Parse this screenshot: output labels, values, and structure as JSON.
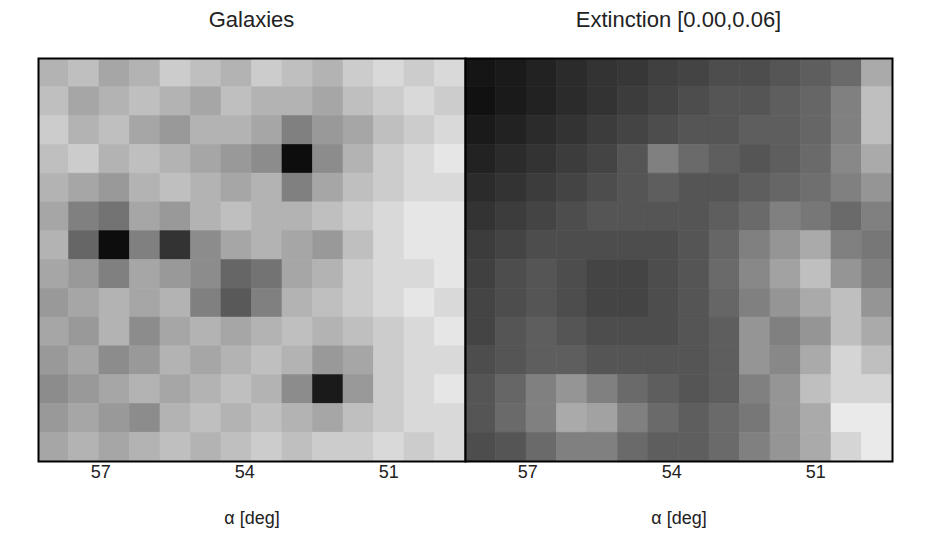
{
  "chart_data": [
    {
      "type": "heatmap",
      "title": "Galaxies",
      "x_label": "α [deg]",
      "xlim": [
        58.3,
        49.4
      ],
      "xticks": [
        57,
        54,
        51
      ],
      "tick_labels": "x",
      "color": [
        "#ffffff",
        "#000000"
      ],
      "color_range": [
        0,
        1
      ],
      "cells": [
        [
          0.3,
          0.25,
          0.35,
          0.3,
          0.2,
          0.25,
          0.3,
          0.2,
          0.25,
          0.3,
          0.2,
          0.15,
          0.2,
          0.15
        ],
        [
          0.25,
          0.35,
          0.3,
          0.25,
          0.3,
          0.35,
          0.25,
          0.3,
          0.3,
          0.35,
          0.25,
          0.2,
          0.15,
          0.2
        ],
        [
          0.2,
          0.3,
          0.25,
          0.35,
          0.4,
          0.3,
          0.3,
          0.35,
          0.5,
          0.4,
          0.35,
          0.25,
          0.2,
          0.15
        ],
        [
          0.25,
          0.2,
          0.3,
          0.25,
          0.3,
          0.35,
          0.4,
          0.45,
          0.95,
          0.45,
          0.3,
          0.2,
          0.15,
          0.1
        ],
        [
          0.3,
          0.35,
          0.4,
          0.3,
          0.25,
          0.3,
          0.35,
          0.3,
          0.5,
          0.35,
          0.25,
          0.2,
          0.15,
          0.15
        ],
        [
          0.35,
          0.5,
          0.55,
          0.35,
          0.4,
          0.3,
          0.25,
          0.3,
          0.3,
          0.25,
          0.2,
          0.15,
          0.1,
          0.1
        ],
        [
          0.3,
          0.6,
          0.95,
          0.5,
          0.8,
          0.45,
          0.35,
          0.3,
          0.35,
          0.4,
          0.25,
          0.15,
          0.1,
          0.1
        ],
        [
          0.35,
          0.4,
          0.5,
          0.35,
          0.4,
          0.45,
          0.6,
          0.55,
          0.35,
          0.3,
          0.2,
          0.15,
          0.15,
          0.1
        ],
        [
          0.4,
          0.35,
          0.3,
          0.35,
          0.3,
          0.5,
          0.65,
          0.5,
          0.3,
          0.25,
          0.2,
          0.15,
          0.1,
          0.15
        ],
        [
          0.35,
          0.4,
          0.3,
          0.45,
          0.35,
          0.3,
          0.35,
          0.3,
          0.25,
          0.3,
          0.25,
          0.2,
          0.15,
          0.1
        ],
        [
          0.4,
          0.35,
          0.45,
          0.4,
          0.3,
          0.35,
          0.3,
          0.25,
          0.3,
          0.4,
          0.35,
          0.2,
          0.15,
          0.15
        ],
        [
          0.45,
          0.4,
          0.35,
          0.3,
          0.35,
          0.3,
          0.25,
          0.3,
          0.45,
          0.9,
          0.4,
          0.2,
          0.15,
          0.1
        ],
        [
          0.4,
          0.35,
          0.4,
          0.45,
          0.3,
          0.25,
          0.3,
          0.25,
          0.3,
          0.35,
          0.25,
          0.2,
          0.15,
          0.15
        ],
        [
          0.35,
          0.3,
          0.35,
          0.3,
          0.25,
          0.3,
          0.25,
          0.2,
          0.25,
          0.2,
          0.2,
          0.15,
          0.2,
          0.15
        ]
      ]
    },
    {
      "type": "heatmap",
      "title": "Extinction [0.00,0.06]",
      "x_label": "α [deg]",
      "xlim": [
        58.3,
        49.4
      ],
      "xticks": [
        57,
        54,
        51
      ],
      "tick_labels": "x",
      "color": [
        "#000000",
        "#ffffff"
      ],
      "color_range": [
        0,
        0.06
      ],
      "cells": [
        [
          0.005,
          0.006,
          0.008,
          0.01,
          0.012,
          0.013,
          0.015,
          0.016,
          0.018,
          0.018,
          0.02,
          0.022,
          0.025,
          0.04
        ],
        [
          0.004,
          0.006,
          0.008,
          0.01,
          0.012,
          0.014,
          0.016,
          0.018,
          0.02,
          0.02,
          0.022,
          0.024,
          0.03,
          0.045
        ],
        [
          0.006,
          0.008,
          0.01,
          0.012,
          0.014,
          0.016,
          0.018,
          0.02,
          0.02,
          0.022,
          0.022,
          0.024,
          0.03,
          0.045
        ],
        [
          0.008,
          0.01,
          0.012,
          0.014,
          0.016,
          0.02,
          0.03,
          0.025,
          0.022,
          0.02,
          0.022,
          0.025,
          0.032,
          0.04
        ],
        [
          0.01,
          0.012,
          0.014,
          0.016,
          0.018,
          0.02,
          0.022,
          0.02,
          0.02,
          0.022,
          0.024,
          0.026,
          0.03,
          0.035
        ],
        [
          0.012,
          0.014,
          0.016,
          0.018,
          0.02,
          0.02,
          0.02,
          0.02,
          0.022,
          0.025,
          0.03,
          0.028,
          0.025,
          0.03
        ],
        [
          0.014,
          0.016,
          0.018,
          0.018,
          0.018,
          0.018,
          0.018,
          0.02,
          0.024,
          0.03,
          0.035,
          0.04,
          0.03,
          0.028
        ],
        [
          0.015,
          0.018,
          0.02,
          0.018,
          0.016,
          0.016,
          0.018,
          0.02,
          0.025,
          0.032,
          0.038,
          0.045,
          0.035,
          0.03
        ],
        [
          0.016,
          0.018,
          0.02,
          0.018,
          0.016,
          0.016,
          0.018,
          0.02,
          0.024,
          0.03,
          0.035,
          0.04,
          0.045,
          0.035
        ],
        [
          0.016,
          0.02,
          0.022,
          0.02,
          0.018,
          0.018,
          0.018,
          0.02,
          0.022,
          0.035,
          0.03,
          0.035,
          0.045,
          0.04
        ],
        [
          0.018,
          0.02,
          0.022,
          0.022,
          0.02,
          0.02,
          0.02,
          0.02,
          0.022,
          0.035,
          0.032,
          0.04,
          0.05,
          0.045
        ],
        [
          0.02,
          0.024,
          0.03,
          0.035,
          0.03,
          0.025,
          0.022,
          0.02,
          0.022,
          0.03,
          0.035,
          0.045,
          0.05,
          0.05
        ],
        [
          0.02,
          0.025,
          0.03,
          0.04,
          0.038,
          0.03,
          0.025,
          0.022,
          0.025,
          0.028,
          0.035,
          0.04,
          0.055,
          0.055
        ],
        [
          0.018,
          0.02,
          0.025,
          0.03,
          0.03,
          0.025,
          0.022,
          0.022,
          0.025,
          0.03,
          0.035,
          0.04,
          0.05,
          0.055
        ]
      ]
    }
  ]
}
